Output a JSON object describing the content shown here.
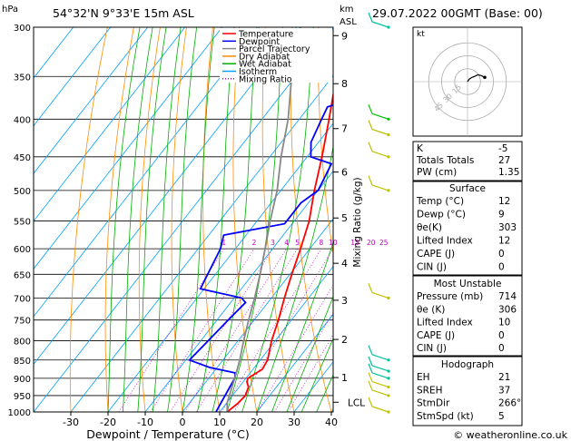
{
  "header": {
    "p_unit": "hPa",
    "location": "54°32'N  9°33'E  15m  ASL",
    "km_unit": "km",
    "asl_unit": "ASL",
    "datetime": "29.07.2022  00GMT  (Base: 00)"
  },
  "legend": [
    {
      "label": "Temperature",
      "color": "#ff0000"
    },
    {
      "label": "Dewpoint",
      "color": "#0000ff"
    },
    {
      "label": "Parcel Trajectory",
      "color": "#888888"
    },
    {
      "label": "Dry Adiabat",
      "color": "#ff8c00"
    },
    {
      "label": "Wet Adiabat",
      "color": "#00b000"
    },
    {
      "label": "Isotherm",
      "color": "#00a0ff"
    },
    {
      "label": "Mixing Ratio",
      "color": "#c000c0"
    }
  ],
  "chart_data": {
    "type": "line",
    "xlabel": "Dewpoint / Temperature (°C)",
    "ylabel": "",
    "y_right_label": "Mixing Ratio (g/kg)",
    "xlim": [
      -35,
      40
    ],
    "ylim": [
      1000,
      300
    ],
    "y_scale": "log",
    "x_ticks": [
      -30,
      -20,
      -10,
      0,
      10,
      20,
      30,
      40
    ],
    "p_ticks": [
      300,
      350,
      400,
      450,
      500,
      550,
      600,
      650,
      700,
      750,
      800,
      850,
      900,
      950,
      1000
    ],
    "km_ticks": [
      {
        "label": "9",
        "p": 308
      },
      {
        "label": "8",
        "p": 358
      },
      {
        "label": "7",
        "p": 412
      },
      {
        "label": "6",
        "p": 472
      },
      {
        "label": "5",
        "p": 545
      },
      {
        "label": "4",
        "p": 628
      },
      {
        "label": "3",
        "p": 705
      },
      {
        "label": "2",
        "p": 797
      },
      {
        "label": "1",
        "p": 898
      }
    ],
    "lcl_label": "LCL",
    "lcl_p": 970,
    "mixing_ratio_labels": [
      "1",
      "2",
      "3",
      "4",
      "5",
      "8",
      "10",
      "15",
      "20",
      "25"
    ],
    "mixing_ratio_values": [
      1,
      2,
      3,
      4,
      5,
      8,
      10,
      15,
      20,
      25
    ],
    "series": [
      {
        "name": "Temperature",
        "color": "#ff0000",
        "points": [
          [
            1000,
            12
          ],
          [
            975,
            13
          ],
          [
            950,
            13.5
          ],
          [
            925,
            12.5
          ],
          [
            910,
            11
          ],
          [
            900,
            10.5
          ],
          [
            875,
            12.5
          ],
          [
            850,
            12
          ],
          [
            800,
            9
          ],
          [
            750,
            6.5
          ],
          [
            700,
            3.5
          ],
          [
            650,
            0.5
          ],
          [
            600,
            -2.5
          ],
          [
            550,
            -6
          ],
          [
            500,
            -11
          ],
          [
            450,
            -16
          ],
          [
            400,
            -22
          ],
          [
            350,
            -29
          ],
          [
            300,
            -36
          ]
        ]
      },
      {
        "name": "Dewpoint",
        "color": "#0000ff",
        "points": [
          [
            1000,
            9
          ],
          [
            975,
            8.5
          ],
          [
            950,
            8
          ],
          [
            925,
            7.5
          ],
          [
            900,
            7
          ],
          [
            885,
            6
          ],
          [
            870,
            -2
          ],
          [
            850,
            -9
          ],
          [
            800,
            -8
          ],
          [
            750,
            -7
          ],
          [
            710,
            -6
          ],
          [
            700,
            -8
          ],
          [
            680,
            -21
          ],
          [
            600,
            -24
          ],
          [
            575,
            -26
          ],
          [
            555,
            -12
          ],
          [
            520,
            -12
          ],
          [
            500,
            -10
          ],
          [
            460,
            -12
          ],
          [
            450,
            -19
          ],
          [
            430,
            -22
          ],
          [
            400,
            -24
          ],
          [
            385,
            -25
          ],
          [
            362,
            -13
          ],
          [
            355,
            -22
          ],
          [
            350,
            -27
          ],
          [
            343,
            -12
          ],
          [
            335,
            -22
          ],
          [
            310,
            -15
          ],
          [
            300,
            -18
          ]
        ]
      },
      {
        "name": "Parcel Trajectory",
        "color": "#888888",
        "points": [
          [
            1000,
            12
          ],
          [
            970,
            10
          ],
          [
            900,
            7
          ],
          [
            850,
            4.5
          ],
          [
            800,
            1.5
          ],
          [
            750,
            -1.5
          ],
          [
            700,
            -4.5
          ],
          [
            650,
            -8
          ],
          [
            600,
            -12
          ],
          [
            550,
            -16.5
          ],
          [
            500,
            -21
          ],
          [
            450,
            -27
          ],
          [
            400,
            -33
          ],
          [
            350,
            -41
          ],
          [
            300,
            -49
          ]
        ]
      }
    ]
  },
  "wind_barbs": [
    {
      "p": 1000,
      "color": "#c0c000"
    },
    {
      "p": 950,
      "color": "#c0c000"
    },
    {
      "p": 925,
      "color": "#c0c000"
    },
    {
      "p": 900,
      "color": "#00c0a0"
    },
    {
      "p": 880,
      "color": "#00c0a0"
    },
    {
      "p": 850,
      "color": "#00c0a0"
    },
    {
      "p": 700,
      "color": "#c0c000"
    },
    {
      "p": 500,
      "color": "#c0c000"
    },
    {
      "p": 450,
      "color": "#c0c000"
    },
    {
      "p": 420,
      "color": "#c0c000"
    },
    {
      "p": 400,
      "color": "#00c000"
    },
    {
      "p": 300,
      "color": "#00c0a0"
    }
  ],
  "hodograph": {
    "unit": "kt",
    "ring_labels": [
      "45",
      "30",
      "15"
    ],
    "trace": [
      [
        0,
        0
      ],
      [
        2,
        3
      ],
      [
        5,
        5
      ],
      [
        8,
        6
      ],
      [
        12,
        8
      ],
      [
        16,
        7
      ],
      [
        20,
        5
      ]
    ]
  },
  "indices_top": [
    {
      "label": "K",
      "value": "-5"
    },
    {
      "label": "Totals Totals",
      "value": "27"
    },
    {
      "label": "PW (cm)",
      "value": "1.35"
    }
  ],
  "surface": {
    "title": "Surface",
    "rows": [
      {
        "label": "Temp (°C)",
        "value": "12"
      },
      {
        "label": "Dewp (°C)",
        "value": "9"
      },
      {
        "label": "θe(K)",
        "value": "303"
      },
      {
        "label": "Lifted Index",
        "value": "12"
      },
      {
        "label": "CAPE (J)",
        "value": "0"
      },
      {
        "label": "CIN (J)",
        "value": "0"
      }
    ]
  },
  "most_unstable": {
    "title": "Most Unstable",
    "rows": [
      {
        "label": "Pressure (mb)",
        "value": "714"
      },
      {
        "label": "θe (K)",
        "value": "306"
      },
      {
        "label": "Lifted Index",
        "value": "10"
      },
      {
        "label": "CAPE (J)",
        "value": "0"
      },
      {
        "label": "CIN (J)",
        "value": "0"
      }
    ]
  },
  "hodograph_box": {
    "title": "Hodograph",
    "rows": [
      {
        "label": "EH",
        "value": "21"
      },
      {
        "label": "SREH",
        "value": "37"
      },
      {
        "label": "StmDir",
        "value": "266°"
      },
      {
        "label": "StmSpd (kt)",
        "value": "5"
      }
    ]
  },
  "footer": {
    "copyright": "© weatheronline.co.uk"
  }
}
